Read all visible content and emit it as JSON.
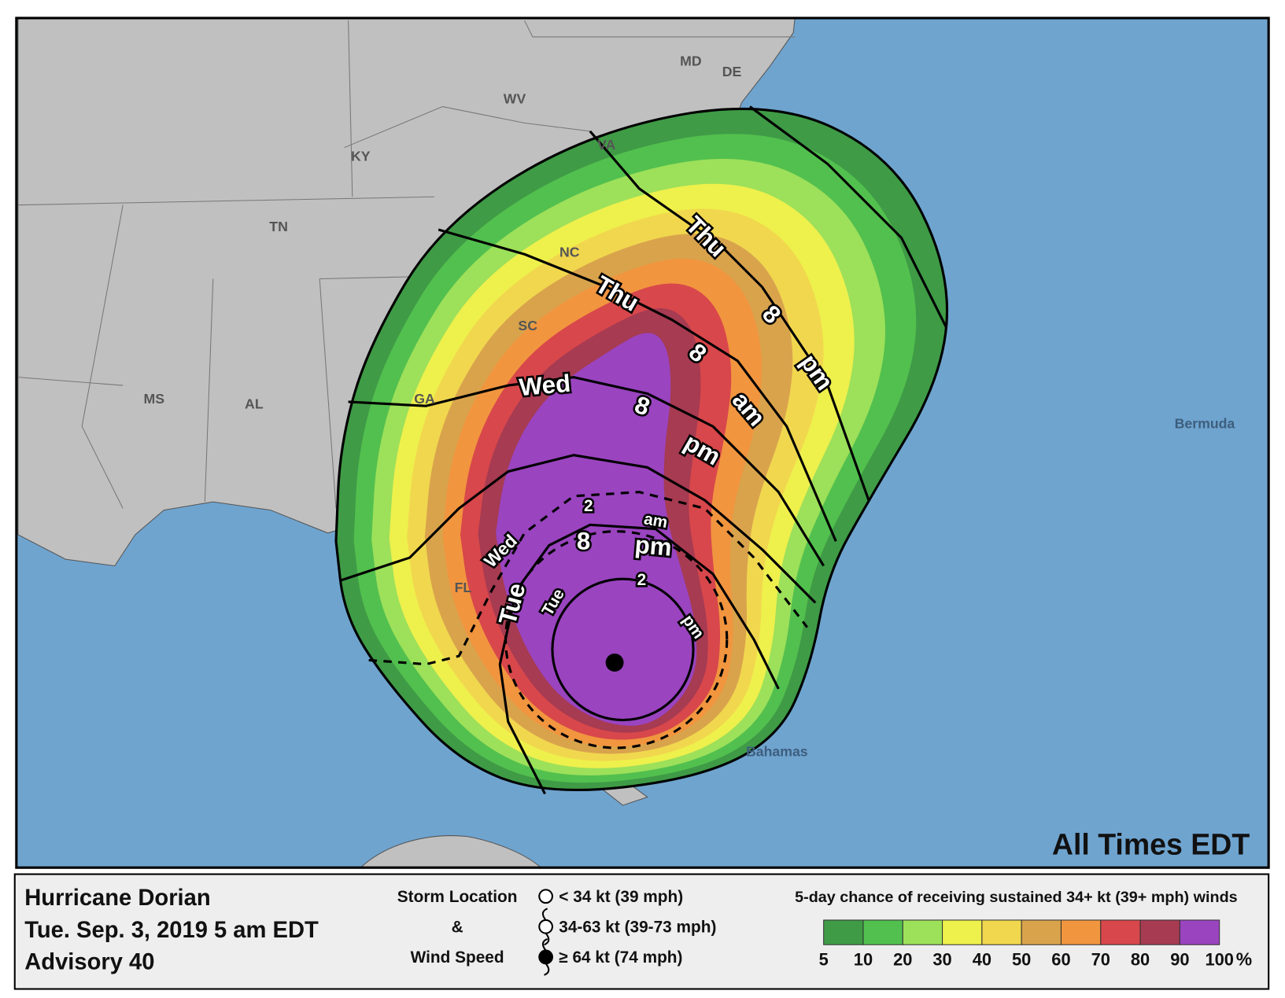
{
  "map": {
    "states": [
      "MS",
      "AL",
      "GA",
      "TN",
      "KY",
      "WV",
      "VA",
      "NC",
      "SC",
      "FL",
      "MD",
      "DE"
    ],
    "places": [
      "Bermuda",
      "Bahamas"
    ],
    "times_note": "All Times EDT",
    "time_labels": [
      "Thu",
      "8",
      "pm",
      "Thu",
      "8",
      "am",
      "Wed",
      "8",
      "pm",
      "2",
      "am",
      "Wed",
      "8",
      "pm",
      "2",
      "pm",
      "Tue",
      "Tue"
    ]
  },
  "legend": {
    "title": "Hurricane Dorian",
    "date": "Tue. Sep. 3, 2019  5 am EDT",
    "advisory": "Advisory 40",
    "storm_heading": [
      "Storm Location",
      "&",
      "Wind Speed"
    ],
    "wind_classes": [
      "< 34 kt (39 mph)",
      "34-63 kt (39-73 mph)",
      "≥ 64 kt (74 mph)"
    ],
    "probability_title": "5-day chance of receiving sustained 34+ kt (39+ mph) winds",
    "scale": [
      5,
      10,
      20,
      30,
      40,
      50,
      60,
      70,
      80,
      90,
      100
    ],
    "scale_unit": "%",
    "colors": [
      "#3f9b46",
      "#52c04e",
      "#9de05a",
      "#eef04c",
      "#f1d74e",
      "#d9a34c",
      "#f1953f",
      "#d8474b",
      "#a63b52",
      "#9a44c0"
    ]
  }
}
